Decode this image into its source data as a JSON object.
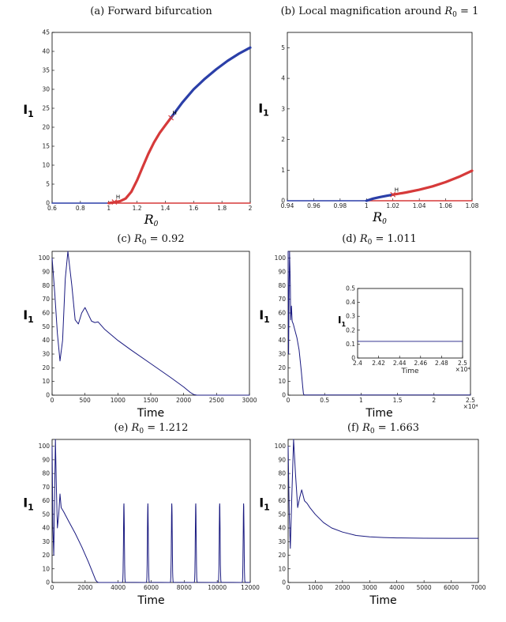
{
  "chart_data": [
    {
      "id": "a",
      "type": "line",
      "title": "(a) Forward bifurcation",
      "xlabel": "R0",
      "ylabel": "I1",
      "xlim": [
        0.6,
        2.0
      ],
      "ylim": [
        0,
        45
      ],
      "xticks": [
        0.6,
        0.8,
        1,
        1.2,
        1.4,
        1.6,
        1.8,
        2
      ],
      "yticks": [
        0,
        5,
        10,
        15,
        20,
        25,
        30,
        35,
        40,
        45
      ],
      "series": [
        {
          "role": "dfe-stable",
          "color": "#2b3fa8",
          "x": [
            0.6,
            1.0
          ],
          "y": [
            0,
            0
          ]
        },
        {
          "role": "dfe-unstable",
          "color": "#d63a3a",
          "x": [
            1.0,
            2.0
          ],
          "y": [
            0,
            0
          ]
        },
        {
          "role": "endemic-unstable",
          "color": "#d63a3a",
          "x": [
            1.0,
            1.04,
            1.08,
            1.12,
            1.16,
            1.2,
            1.24,
            1.28,
            1.32,
            1.36,
            1.4,
            1.44
          ],
          "y": [
            0,
            0.2,
            0.5,
            1.2,
            3.0,
            6.0,
            9.5,
            13.0,
            16.0,
            18.5,
            20.5,
            22.5
          ]
        },
        {
          "role": "endemic-stable",
          "color": "#2b3fa8",
          "x": [
            1.44,
            1.52,
            1.6,
            1.68,
            1.76,
            1.84,
            1.92,
            2.0
          ],
          "y": [
            22.5,
            26.5,
            30.0,
            32.8,
            35.3,
            37.5,
            39.4,
            41.0
          ]
        }
      ],
      "markers": [
        {
          "label": "H",
          "x": 1.04,
          "y": 0.3
        },
        {
          "label": "H",
          "x": 1.44,
          "y": 22.5
        }
      ]
    },
    {
      "id": "b",
      "type": "line",
      "title": "(b) Local magnification around R0 = 1",
      "xlabel": "R0",
      "ylabel": "I1",
      "xlim": [
        0.94,
        1.08
      ],
      "ylim": [
        0,
        5.5
      ],
      "xticks": [
        0.94,
        0.96,
        0.98,
        1,
        1.02,
        1.04,
        1.06,
        1.08
      ],
      "yticks": [
        0,
        1,
        2,
        3,
        4,
        5
      ],
      "series": [
        {
          "role": "dfe-stable",
          "color": "#2b3fa8",
          "x": [
            0.94,
            1.0
          ],
          "y": [
            0,
            0
          ]
        },
        {
          "role": "dfe-unstable",
          "color": "#d63a3a",
          "x": [
            1.0,
            1.08
          ],
          "y": [
            0,
            0
          ]
        },
        {
          "role": "endemic-stable",
          "color": "#2b3fa8",
          "x": [
            1.0,
            1.005,
            1.01,
            1.015,
            1.02
          ],
          "y": [
            0,
            0.07,
            0.12,
            0.16,
            0.2
          ]
        },
        {
          "role": "endemic-unstable",
          "color": "#d63a3a",
          "x": [
            1.02,
            1.03,
            1.04,
            1.05,
            1.06,
            1.07,
            1.08
          ],
          "y": [
            0.2,
            0.27,
            0.36,
            0.47,
            0.61,
            0.78,
            0.98
          ]
        }
      ],
      "markers": [
        {
          "label": "H",
          "x": 1.02,
          "y": 0.2
        }
      ]
    },
    {
      "id": "c",
      "type": "line",
      "title": "(c) R0 = 0.92",
      "xlabel": "Time",
      "ylabel": "I1",
      "xlim": [
        0,
        3000
      ],
      "ylim": [
        0,
        105
      ],
      "xticks": [
        0,
        500,
        1000,
        1500,
        2000,
        2500,
        3000
      ],
      "yticks": [
        0,
        10,
        20,
        30,
        40,
        50,
        60,
        70,
        80,
        90,
        100
      ],
      "series": [
        {
          "color": "#1a1a80",
          "x": [
            0,
            40,
            80,
            120,
            160,
            200,
            240,
            300,
            350,
            400,
            450,
            500,
            550,
            600,
            650,
            700,
            800,
            1000,
            1200,
            1500,
            1800,
            2000,
            2100,
            2150,
            2200,
            2500,
            3000
          ],
          "y": [
            100,
            75,
            45,
            25,
            40,
            85,
            105,
            80,
            55,
            52,
            60,
            64,
            59,
            54,
            53,
            53.5,
            48,
            40,
            33,
            23,
            13,
            6,
            2,
            0.5,
            0,
            0,
            0
          ]
        }
      ]
    },
    {
      "id": "d",
      "type": "line",
      "title": "(d) R0 = 1.011",
      "xlabel": "Time",
      "ylabel": "I1",
      "xlim": [
        0,
        25000
      ],
      "ylim": [
        0,
        105
      ],
      "xticks": [
        0,
        5000,
        10000,
        15000,
        20000,
        25000
      ],
      "xticklabels": [
        "0",
        "0.5",
        "1",
        "1.5",
        "2",
        "2.5"
      ],
      "xmultiplier": "×10⁴",
      "yticks": [
        0,
        10,
        20,
        30,
        40,
        50,
        60,
        70,
        80,
        90,
        100
      ],
      "series": [
        {
          "color": "#1a1a80",
          "x": [
            0,
            60,
            120,
            200,
            300,
            350,
            450,
            550,
            700,
            900,
            1200,
            1500,
            1800,
            2000,
            2100,
            2200,
            25000
          ],
          "y": [
            105,
            30,
            70,
            105,
            80,
            55,
            65,
            54,
            52,
            48,
            42,
            33,
            18,
            6,
            1,
            0.2,
            0.2
          ]
        }
      ],
      "inset": {
        "xlabel": "Time",
        "ylabel": "I1",
        "xlim": [
          24000,
          25000
        ],
        "ylim": [
          0,
          0.5
        ],
        "xticks": [
          24000,
          24200,
          24400,
          24600,
          24800,
          25000
        ],
        "xticklabels": [
          "2.4",
          "2.42",
          "2.44",
          "2.46",
          "2.48",
          "2.5"
        ],
        "xmultiplier": "×10⁴",
        "yticks": [
          0,
          0.1,
          0.2,
          0.3,
          0.4,
          0.5
        ],
        "series": [
          {
            "color": "#1a1a80",
            "x": [
              24000,
              25000
            ],
            "y": [
              0.12,
              0.12
            ]
          }
        ]
      }
    },
    {
      "id": "e",
      "type": "line",
      "title": "(e) R0 = 1.212",
      "xlabel": "Time",
      "ylabel": "I1",
      "xlim": [
        0,
        12000
      ],
      "ylim": [
        0,
        105
      ],
      "xticks": [
        0,
        2000,
        4000,
        6000,
        8000,
        10000,
        12000
      ],
      "yticks": [
        0,
        10,
        20,
        30,
        40,
        50,
        60,
        70,
        80,
        90,
        100
      ],
      "pulses": {
        "times": [
          4350,
          5800,
          7250,
          8700,
          10150,
          11600
        ],
        "peak": 58,
        "halfwidth": 90
      },
      "series": [
        {
          "color": "#1a1a80",
          "x": [
            0,
            50,
            100,
            150,
            200,
            260,
            320,
            400,
            480,
            550,
            700,
            1000,
            1400,
            1800,
            2200,
            2500,
            2650,
            2750,
            2800,
            4200
          ],
          "y": [
            100,
            40,
            20,
            60,
            105,
            70,
            40,
            50,
            65,
            55,
            52,
            45,
            36,
            26,
            15,
            6,
            1.5,
            0.3,
            0,
            0
          ]
        }
      ]
    },
    {
      "id": "f",
      "type": "line",
      "title": "(f) R0 = 1.663",
      "xlabel": "Time",
      "ylabel": "I1",
      "xlim": [
        0,
        7000
      ],
      "ylim": [
        0,
        105
      ],
      "xticks": [
        0,
        1000,
        2000,
        3000,
        4000,
        5000,
        6000,
        7000
      ],
      "yticks": [
        0,
        10,
        20,
        30,
        40,
        50,
        60,
        70,
        80,
        90,
        100
      ],
      "series": [
        {
          "color": "#1a1a80",
          "x": [
            0,
            40,
            80,
            130,
            200,
            270,
            350,
            420,
            500,
            600,
            700,
            800,
            1000,
            1300,
            1600,
            2000,
            2500,
            3000,
            3500,
            4000,
            5000,
            6000,
            7000
          ],
          "y": [
            100,
            50,
            25,
            60,
            105,
            80,
            55,
            62,
            68,
            60,
            58,
            55,
            50,
            44,
            40,
            37,
            34.5,
            33.5,
            33,
            32.7,
            32.5,
            32.4,
            32.4
          ]
        }
      ]
    }
  ]
}
